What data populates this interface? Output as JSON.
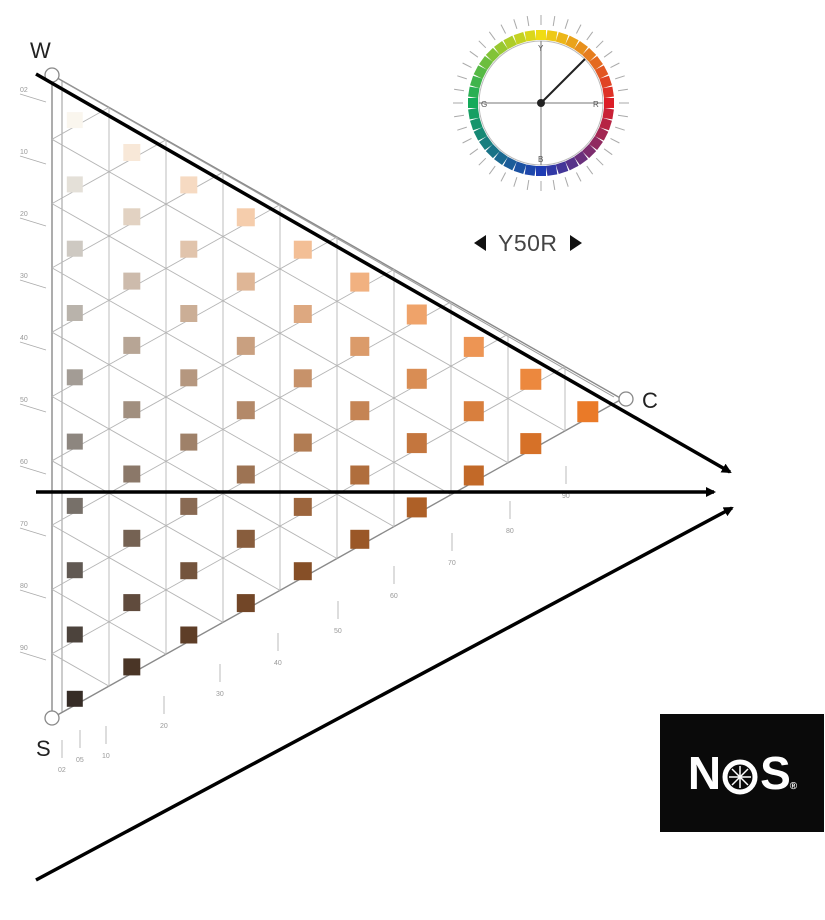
{
  "corners": {
    "white": "W",
    "chromatic": "C",
    "black": "S"
  },
  "hue": {
    "label": "Y50R",
    "circle_labels": {
      "top": "Y",
      "right": "R",
      "bottom": "B",
      "left": "G"
    }
  },
  "logo": {
    "text_left": "N",
    "text_right": "S",
    "trademark": "®"
  },
  "scales": {
    "blackness_ticks": [
      "02",
      "10",
      "20",
      "30",
      "40",
      "50",
      "60",
      "70",
      "80",
      "90"
    ],
    "chromaticness_ticks": [
      "02",
      "05",
      "10",
      "20",
      "30",
      "40",
      "50",
      "60",
      "70",
      "80",
      "90"
    ]
  },
  "colors": {
    "accent_arrow": "#000000",
    "logo_bg": "#0a0a0a"
  }
}
